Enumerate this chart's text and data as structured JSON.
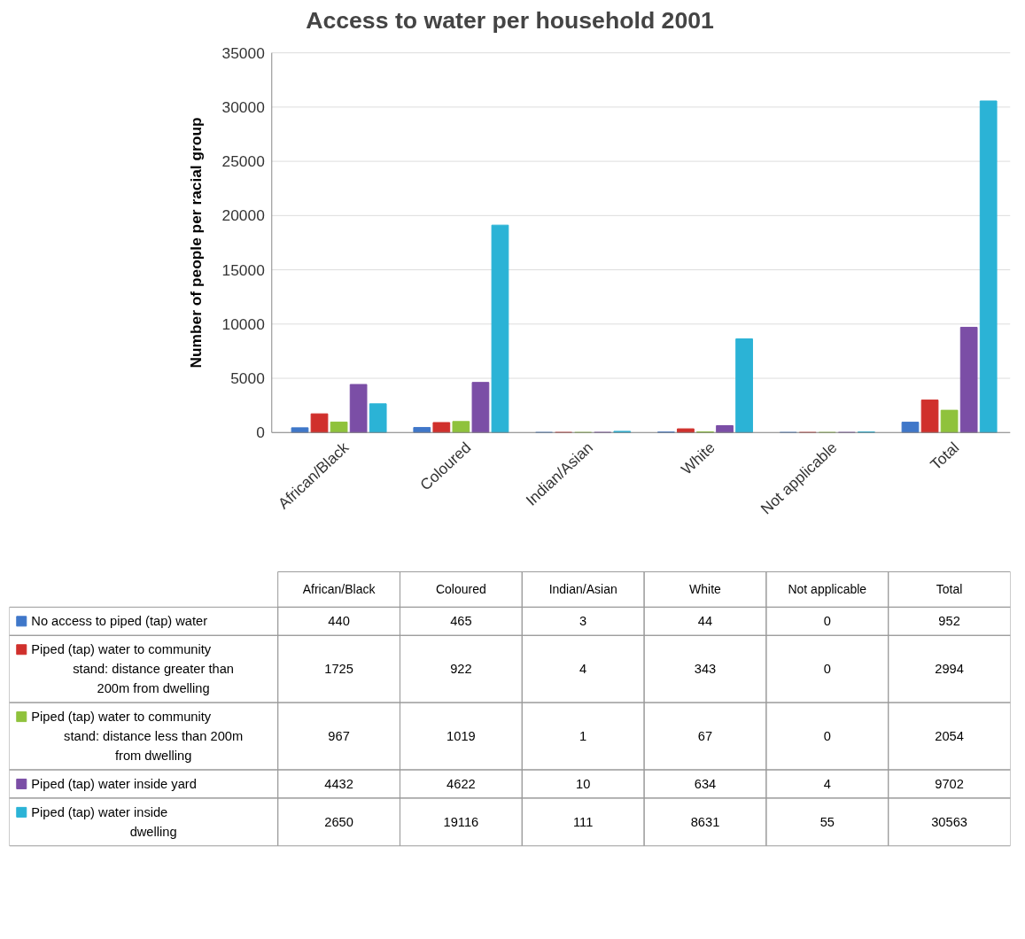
{
  "chart_data": {
    "type": "bar",
    "title": "Access to water per household 2001",
    "ylabel": "Number of people per racial group",
    "categories": [
      "African/Black",
      "Coloured",
      "Indian/Asian",
      "White",
      "Not applicable",
      "Total"
    ],
    "series": [
      {
        "name": "No access to piped (tap) water",
        "color": "#3f77c9",
        "values": [
          440,
          465,
          3,
          44,
          0,
          952
        ]
      },
      {
        "name": "Piped (tap) water to community stand: distance greater than 200m from dwelling",
        "color": "#d0302c",
        "values": [
          1725,
          922,
          4,
          343,
          0,
          2994
        ]
      },
      {
        "name": "Piped (tap) water to community stand: distance less than 200m from dwelling",
        "color": "#8fc23c",
        "values": [
          967,
          1019,
          1,
          67,
          0,
          2054
        ]
      },
      {
        "name": "Piped (tap) water inside yard",
        "color": "#7b4ea6",
        "values": [
          4432,
          4622,
          10,
          634,
          4,
          9702
        ]
      },
      {
        "name": "Piped (tap) water inside dwelling",
        "color": "#2bb3d6",
        "values": [
          2650,
          19116,
          111,
          8631,
          55,
          30563
        ]
      }
    ],
    "ylim": [
      0,
      35000
    ],
    "yticks": [
      0,
      5000,
      10000,
      15000,
      20000,
      25000,
      30000,
      35000
    ],
    "grid": "y",
    "legend": "bottom",
    "data_labels": true
  }
}
